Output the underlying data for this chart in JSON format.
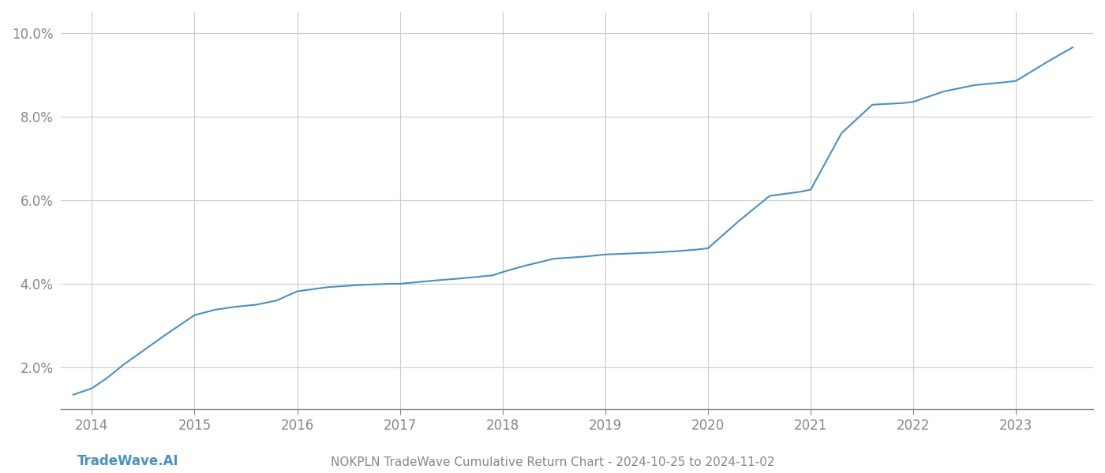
{
  "title": "NOKPLN TradeWave Cumulative Return Chart - 2024-10-25 to 2024-11-02",
  "watermark": "TradeWave.AI",
  "line_color": "#4a90c4",
  "background_color": "#ffffff",
  "grid_color": "#cccccc",
  "x_years": [
    2014,
    2015,
    2016,
    2017,
    2018,
    2019,
    2020,
    2021,
    2022,
    2023
  ],
  "data_x": [
    2013.82,
    2014.0,
    2014.15,
    2014.3,
    2014.5,
    2014.7,
    2014.85,
    2015.0,
    2015.2,
    2015.4,
    2015.6,
    2015.8,
    2016.0,
    2016.3,
    2016.6,
    2016.9,
    2017.0,
    2017.3,
    2017.6,
    2017.9,
    2018.0,
    2018.2,
    2018.5,
    2018.8,
    2019.0,
    2019.2,
    2019.5,
    2019.7,
    2019.9,
    2020.0,
    2020.3,
    2020.6,
    2020.9,
    2021.0,
    2021.3,
    2021.6,
    2021.9,
    2022.0,
    2022.3,
    2022.6,
    2022.9,
    2023.0,
    2023.3,
    2023.55
  ],
  "data_y": [
    1.35,
    1.5,
    1.75,
    2.05,
    2.4,
    2.75,
    3.0,
    3.25,
    3.38,
    3.45,
    3.5,
    3.6,
    3.82,
    3.92,
    3.97,
    4.0,
    4.0,
    4.07,
    4.13,
    4.2,
    4.28,
    4.42,
    4.6,
    4.65,
    4.7,
    4.72,
    4.75,
    4.78,
    4.82,
    4.85,
    5.5,
    6.1,
    6.2,
    6.25,
    7.6,
    8.28,
    8.32,
    8.35,
    8.6,
    8.75,
    8.82,
    8.85,
    9.3,
    9.65
  ],
  "ylim": [
    1.0,
    10.5
  ],
  "yticks": [
    2.0,
    4.0,
    6.0,
    8.0,
    10.0
  ],
  "xlim": [
    2013.7,
    2023.75
  ],
  "line_width": 1.5,
  "title_fontsize": 11,
  "watermark_fontsize": 12,
  "tick_fontsize": 12,
  "tick_color": "#888888",
  "axis_color": "#888888"
}
